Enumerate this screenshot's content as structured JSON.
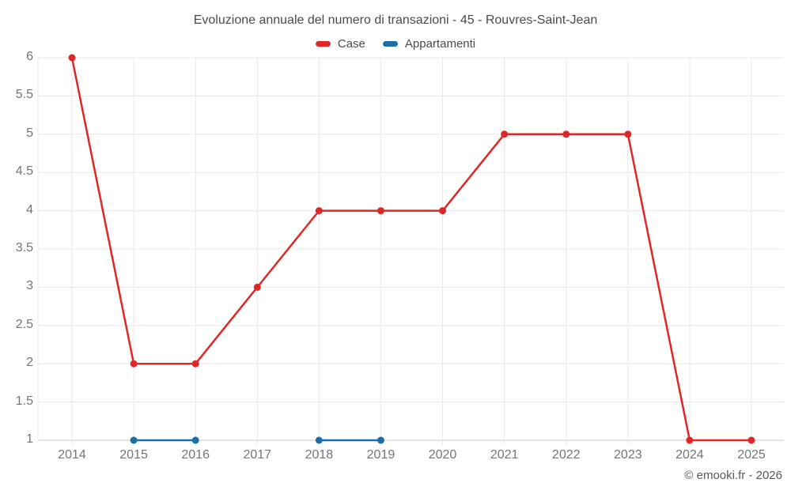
{
  "title": "Evoluzione annuale del numero di transazioni - 45 - Rouvres-Saint-Jean",
  "copyright": "© emooki.fr - 2026",
  "chart_data": {
    "type": "line",
    "title": "Evoluzione annuale del numero di transazioni - 45 - Rouvres-Saint-Jean",
    "x": [
      2014,
      2015,
      2016,
      2017,
      2018,
      2019,
      2020,
      2021,
      2022,
      2023,
      2024,
      2025
    ],
    "series": [
      {
        "name": "Case",
        "color": "#e12626",
        "values": [
          6,
          2,
          2,
          3,
          4,
          4,
          4,
          5,
          5,
          5,
          1,
          1
        ]
      },
      {
        "name": "Appartamenti",
        "color": "#1b6fa8",
        "values": [
          null,
          1,
          1,
          null,
          1,
          1,
          null,
          null,
          null,
          null,
          null,
          null
        ]
      }
    ],
    "xlabel": "",
    "ylabel": "",
    "ylim": [
      1,
      6
    ],
    "ytick_step": 0.5,
    "grid": true,
    "legend_position": "top",
    "grid_color": "#e8e8e8",
    "axis_line_color": "#c9c9c9"
  }
}
